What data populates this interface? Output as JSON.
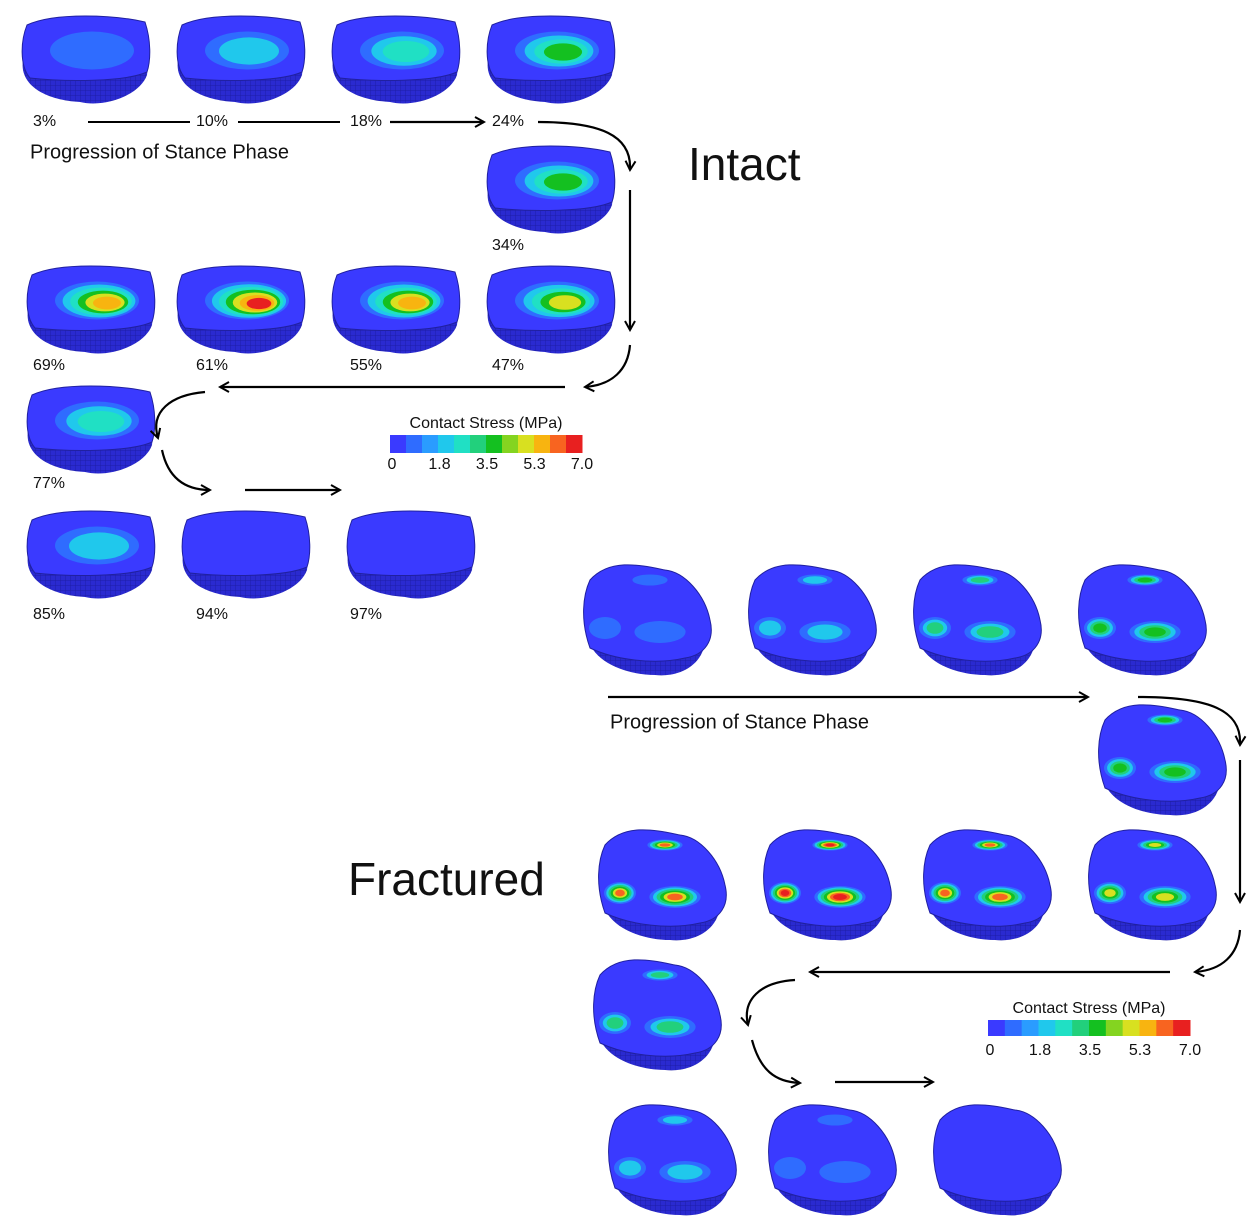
{
  "intact": {
    "title": "Intact",
    "caption": "Progression of Stance Phase",
    "frames": [
      "3%",
      "10%",
      "18%",
      "24%",
      "34%",
      "69%",
      "61%",
      "55%",
      "47%",
      "77%",
      "85%",
      "94%",
      "97%"
    ],
    "colorbar": {
      "title": "Contact Stress (MPa)",
      "ticks": [
        "0",
        "1.8",
        "3.5",
        "5.3",
        "7.0"
      ]
    }
  },
  "fractured": {
    "title": "Fractured",
    "caption": "Progression of Stance Phase",
    "colorbar": {
      "title": "Contact Stress (MPa)",
      "ticks": [
        "0",
        "1.8",
        "3.5",
        "5.3",
        "7.0"
      ]
    }
  },
  "colorscale": [
    "#3a3aff",
    "#2f6cff",
    "#2a9cff",
    "#20c8ec",
    "#20e0c4",
    "#22d07c",
    "#14c020",
    "#84d420",
    "#d8e020",
    "#f8b410",
    "#f86420",
    "#e82020"
  ]
}
